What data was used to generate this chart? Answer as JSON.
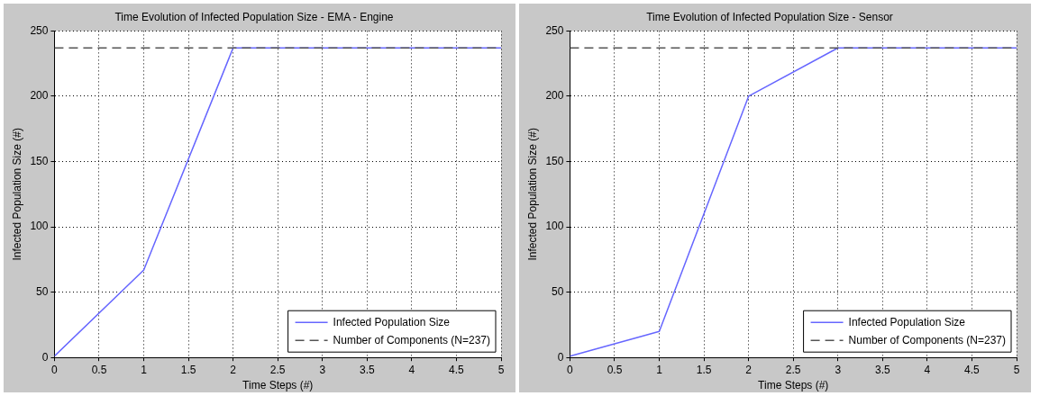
{
  "chart_data": [
    {
      "type": "line",
      "title": "Time Evolution of Infected Population Size - EMA - Engine",
      "xlabel": "Time Steps (#)",
      "ylabel": "Infected Population Size (#)",
      "x": [
        0,
        1,
        2,
        3,
        4,
        5
      ],
      "series": [
        {
          "name": "Infected Population Size",
          "color": "#6666ff",
          "values": [
            1,
            67,
            237,
            237,
            237,
            237
          ],
          "line_style": "solid"
        },
        {
          "name": "Number of Components (N=237)",
          "color": "#555555",
          "values": [
            237,
            237,
            237,
            237,
            237,
            237
          ],
          "line_style": "dashed"
        }
      ],
      "xlim": [
        0,
        5
      ],
      "xticks": [
        0,
        0.5,
        1,
        1.5,
        2,
        2.5,
        3,
        3.5,
        4,
        4.5,
        5
      ],
      "ylim": [
        0,
        250
      ],
      "yticks": [
        0,
        50,
        100,
        150,
        200,
        250
      ],
      "grid": true,
      "legend": "bottom right",
      "marker": "none"
    },
    {
      "type": "line",
      "title": "Time Evolution of Infected Population Size - Sensor",
      "xlabel": "Time Steps (#)",
      "ylabel": "Infected Population Size (#)",
      "x": [
        0,
        1,
        2,
        3,
        4,
        5
      ],
      "series": [
        {
          "name": "Infected Population Size",
          "color": "#6666ff",
          "values": [
            1,
            20,
            200,
            237,
            237,
            237
          ],
          "line_style": "solid"
        },
        {
          "name": "Number of Components (N=237)",
          "color": "#555555",
          "values": [
            237,
            237,
            237,
            237,
            237,
            237
          ],
          "line_style": "dashed"
        }
      ],
      "xlim": [
        0,
        5
      ],
      "xticks": [
        0,
        0.5,
        1,
        1.5,
        2,
        2.5,
        3,
        3.5,
        4,
        4.5,
        5
      ],
      "ylim": [
        0,
        250
      ],
      "yticks": [
        0,
        50,
        100,
        150,
        200,
        250
      ],
      "grid": true,
      "legend": "bottom right",
      "marker": "none"
    }
  ]
}
